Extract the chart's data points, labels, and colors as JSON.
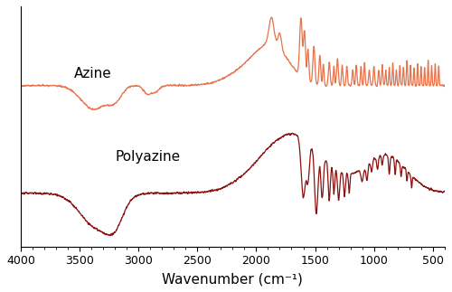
{
  "title": "",
  "xlabel": "Wavenumber (cm⁻¹)",
  "xlim": [
    4000,
    400
  ],
  "ylim_azine": [
    -0.1,
    1.6
  ],
  "ylim_poly": [
    -0.8,
    1.0
  ],
  "azine_color": "#E8724A",
  "poly_color": "#8B1010",
  "azine_label": "Azine",
  "poly_label": "Polyazine",
  "background_color": "#ffffff",
  "xticks": [
    4000,
    3500,
    3000,
    2500,
    2000,
    1500,
    1000,
    500
  ],
  "figsize": [
    5.0,
    3.23
  ],
  "dpi": 100
}
